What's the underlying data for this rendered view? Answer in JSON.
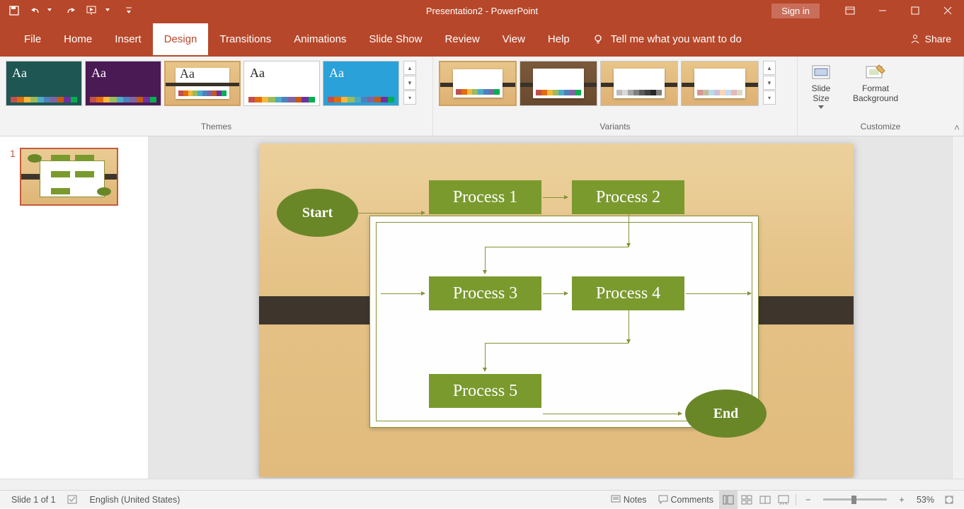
{
  "app": {
    "title": "Presentation2  -  PowerPoint",
    "signin": "Sign in"
  },
  "tabs": {
    "file": "File",
    "home": "Home",
    "insert": "Insert",
    "design": "Design",
    "transitions": "Transitions",
    "animations": "Animations",
    "slideshow": "Slide Show",
    "review": "Review",
    "view": "View",
    "help": "Help",
    "tellme": "Tell me what you want to do",
    "share": "Share"
  },
  "ribbon": {
    "themes_label": "Themes",
    "variants_label": "Variants",
    "customize_label": "Customize",
    "slide_size": "Slide\nSize",
    "format_bg": "Format\nBackground",
    "theme_thumbs": [
      {
        "bg": "#1e5653",
        "fg": "#ffffff",
        "aa": "Aa"
      },
      {
        "bg": "#4a1a55",
        "fg": "#ffffff",
        "aa": "Aa"
      },
      {
        "bg": "#ffffff",
        "fg": "#333333",
        "aa": "Aa",
        "wood": true,
        "selected": true
      },
      {
        "bg": "#ffffff",
        "fg": "#222222",
        "aa": "Aa"
      },
      {
        "bg": "#2aa1d8",
        "fg": "#ffffff",
        "aa": "Aa"
      }
    ],
    "palette": [
      "#c0504d",
      "#e36c0a",
      "#f6b73c",
      "#9bbb59",
      "#4bacc6",
      "#4f81bd",
      "#8064a2",
      "#c55a11",
      "#7030a0",
      "#00b050"
    ],
    "variants": [
      {
        "selected": true,
        "colors": [
          "#c0504d",
          "#e36c0a",
          "#f6b73c",
          "#9bbb59",
          "#4bacc6",
          "#4f81bd",
          "#8064a2",
          "#00b050"
        ]
      },
      {
        "dark": true,
        "colors": [
          "#c0504d",
          "#e36c0a",
          "#f6b73c",
          "#9bbb59",
          "#4bacc6",
          "#4f81bd",
          "#8064a2",
          "#00b050"
        ]
      },
      {
        "colors": [
          "#bcbcbc",
          "#d9d9d9",
          "#a6a6a6",
          "#808080",
          "#595959",
          "#404040",
          "#262626",
          "#7f7f7f"
        ]
      },
      {
        "colors": [
          "#d99694",
          "#c4bd97",
          "#b7dde8",
          "#ccc1d9",
          "#fbd5b5",
          "#c6d9f0",
          "#e5b9b7",
          "#ddd9c4"
        ]
      }
    ]
  },
  "thumb": {
    "number": "1"
  },
  "flowchart": {
    "start": "Start",
    "end": "End",
    "p1": "Process 1",
    "p2": "Process 2",
    "p3": "Process 3",
    "p4": "Process 4",
    "p5": "Process 5",
    "box_color": "#7a9a2e",
    "term_color": "#6a8728",
    "conn_color": "#889138",
    "font": "Georgia, serif",
    "box_fontsize": 24,
    "term_fontsize": 20
  },
  "status": {
    "slide": "Slide 1 of 1",
    "lang": "English (United States)",
    "notes": "Notes",
    "comments": "Comments",
    "zoom": "53%"
  }
}
